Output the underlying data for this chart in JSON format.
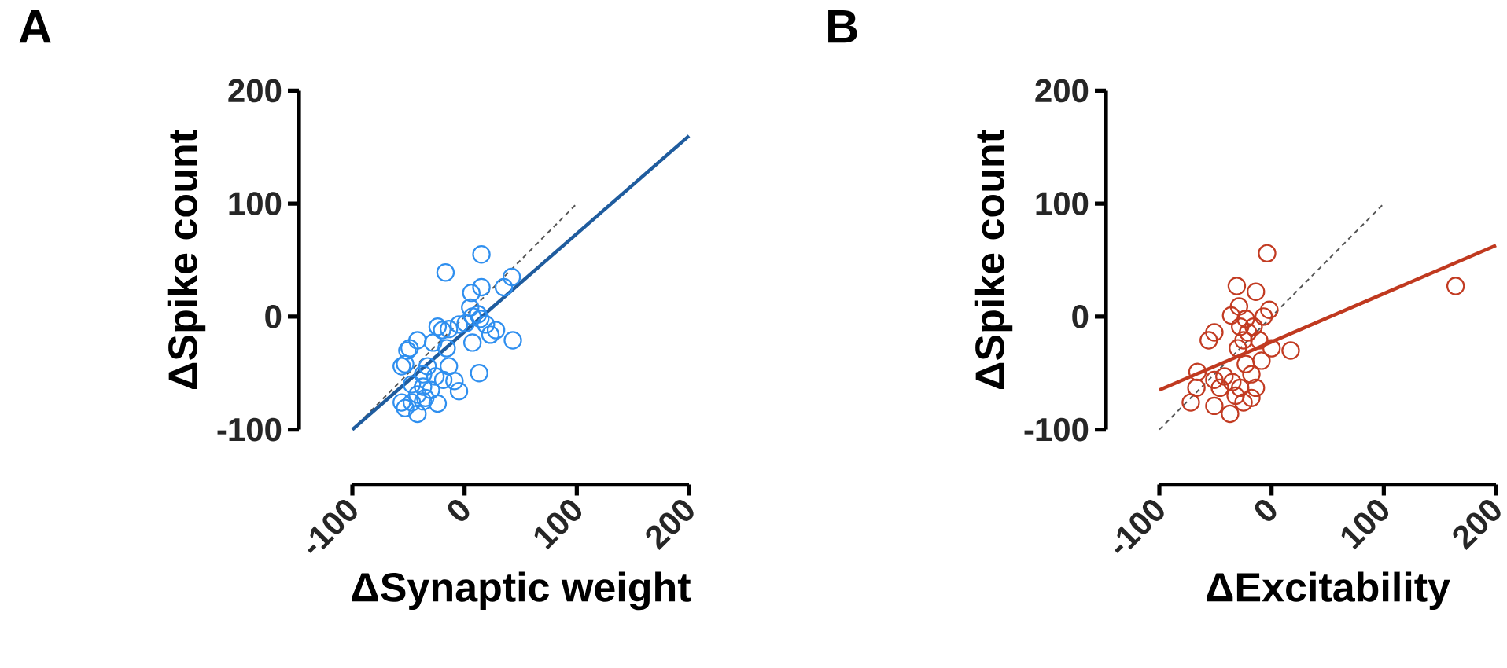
{
  "chart_data": [
    {
      "type": "scatter",
      "title": "A",
      "xlabel": "ΔSynaptic  weight",
      "ylabel": "ΔSpike count",
      "xlim": [
        -100,
        200
      ],
      "ylim": [
        -100,
        200
      ],
      "xticks": [
        -100,
        0,
        100,
        200
      ],
      "yticks": [
        -100,
        0,
        100,
        200
      ],
      "grid": false,
      "series": [
        {
          "type": "scatter",
          "marker": "circle",
          "color": "#2f8fef",
          "x": [
            15,
            -17,
            42,
            35,
            15,
            6,
            5,
            12,
            7,
            14,
            1,
            19,
            28,
            23,
            43,
            7,
            -5,
            -14,
            -24,
            -20,
            -28,
            -16,
            -42,
            -49,
            -51,
            -56,
            -53,
            -14,
            13,
            -33,
            -37,
            -26,
            -19,
            -9,
            -47,
            -37,
            -30,
            -5,
            -42,
            -35,
            -56,
            -47,
            -37,
            -24,
            -42,
            -53
          ],
          "values": [
            55,
            39,
            35,
            26,
            26,
            21,
            8,
            2,
            0,
            -2,
            -6,
            -7,
            -12,
            -16,
            -21,
            -23,
            -7,
            -11,
            -9,
            -12,
            -23,
            -28,
            -21,
            -28,
            -30,
            -44,
            -42,
            -44,
            -50,
            -44,
            -51,
            -53,
            -56,
            -57,
            -60,
            -62,
            -65,
            -66,
            -69,
            -72,
            -76,
            -76,
            -75,
            -77,
            -86,
            -81
          ]
        },
        {
          "type": "line",
          "line_style": "dashed",
          "color": "#555555",
          "x": [
            -100,
            100
          ],
          "values": [
            -100,
            100
          ]
        },
        {
          "type": "line",
          "line_style": "solid",
          "color": "#1f5c9e",
          "x": [
            -100,
            200
          ],
          "values": [
            -100,
            160
          ]
        }
      ]
    },
    {
      "type": "scatter",
      "title": "B",
      "xlabel": "ΔExcitability",
      "ylabel": "ΔSpike count",
      "xlim": [
        -100,
        200
      ],
      "ylim": [
        -100,
        200
      ],
      "xticks": [
        -100,
        0,
        100,
        200
      ],
      "yticks": [
        -100,
        0,
        100,
        200
      ],
      "grid": false,
      "series": [
        {
          "type": "scatter",
          "marker": "circle",
          "color": "#c23b22",
          "x": [
            -4,
            -31,
            -14,
            -29,
            -36,
            -2,
            -7,
            -23,
            -28,
            -16,
            -21,
            -51,
            -56,
            -11,
            -25,
            0,
            17,
            -30,
            -9,
            -23,
            -66,
            -51,
            -42,
            -18,
            -35,
            -28,
            -67,
            -46,
            -14,
            -32,
            -18,
            -72,
            -51,
            -25,
            -37,
            164
          ],
          "values": [
            56,
            27,
            22,
            9,
            1,
            6,
            0,
            -2,
            -9,
            -9,
            -14,
            -14,
            -21,
            -21,
            -21,
            -28,
            -30,
            -28,
            -39,
            -42,
            -49,
            -56,
            -53,
            -51,
            -58,
            -63,
            -63,
            -63,
            -63,
            -70,
            -72,
            -76,
            -79,
            -76,
            -86,
            27
          ]
        },
        {
          "type": "line",
          "line_style": "dashed",
          "color": "#555555",
          "x": [
            -100,
            100
          ],
          "values": [
            -100,
            100
          ]
        },
        {
          "type": "line",
          "line_style": "solid",
          "color": "#c0391f",
          "x": [
            -100,
            200
          ],
          "values": [
            -65,
            63
          ]
        }
      ]
    }
  ]
}
